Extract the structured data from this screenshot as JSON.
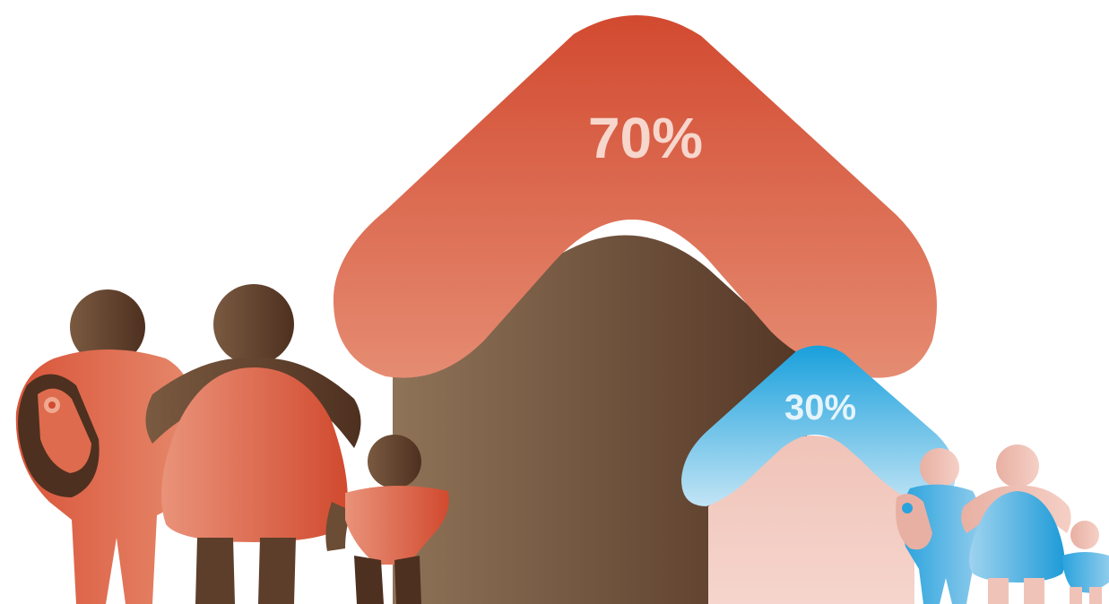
{
  "large_house": {
    "label": "70%",
    "value": 70,
    "color": "#d24a30"
  },
  "small_house": {
    "label": "30%",
    "value": 30,
    "color": "#19a0dc"
  },
  "colors": {
    "roof_red_top": "#d24a30",
    "roof_red_bottom": "#e58a70",
    "body_brown_light": "#8b6f55",
    "body_brown_dark": "#5a3b28",
    "roof_blue_top": "#19a0dc",
    "roof_blue_bottom": "#bfe3f5",
    "body_pink": "#f2c9bf",
    "label_light": "#f7d6cc",
    "label_light_blue": "#e6f4fb"
  }
}
